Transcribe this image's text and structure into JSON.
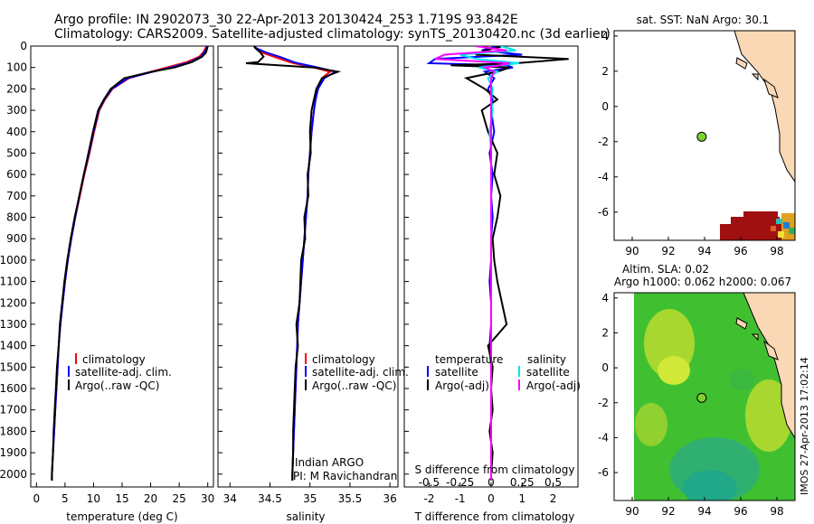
{
  "header": {
    "line1": "Argo profile: IN 2902073_30 22-Apr-2013 20130424_253 1.719S 93.842E",
    "line2": "Climatology: CARS2009. Satellite-adjusted climatology: synTS_20130420.nc (3d earlier)"
  },
  "credit": "IMOS 27-Apr-2013 17:02:14",
  "profile_info": {
    "program": "Indian ARGO",
    "pi": "PI: M Ravichandran"
  },
  "colors": {
    "climatology": "#ff0000",
    "satellite": "#0000ff",
    "argo": "#000000",
    "sat_diff_s": "#00e5ee",
    "argo_diff_s": "#ff00ff"
  },
  "chart_data": [
    {
      "type": "line",
      "name": "temperature-profile",
      "xlabel": "temperature (deg C)",
      "ylabel": "",
      "xlim": [
        -1,
        31
      ],
      "ylim": [
        2060,
        0
      ],
      "xticks": [
        0,
        5,
        10,
        15,
        20,
        25,
        30
      ],
      "yticks": [
        0,
        100,
        200,
        300,
        400,
        500,
        600,
        700,
        800,
        900,
        1000,
        1100,
        1200,
        1300,
        1400,
        1500,
        1600,
        1700,
        1800,
        1900,
        2000
      ],
      "depth": [
        0,
        10,
        30,
        50,
        75,
        100,
        120,
        150,
        200,
        250,
        300,
        400,
        500,
        600,
        700,
        800,
        900,
        1000,
        1100,
        1200,
        1300,
        1400,
        1500,
        1600,
        1700,
        1800,
        1900,
        2000,
        2030
      ],
      "series": [
        {
          "name": "climatology",
          "values": [
            29.7,
            29.6,
            29.2,
            28.5,
            26.3,
            22.8,
            20.1,
            16.2,
            13.3,
            12.0,
            11.0,
            10.1,
            9.3,
            8.4,
            7.6,
            6.8,
            6.1,
            5.5,
            5.0,
            4.6,
            4.2,
            3.9,
            3.7,
            3.5,
            3.3,
            3.1,
            2.9,
            2.7,
            2.7
          ]
        },
        {
          "name": "satellite-adj. clim.",
          "values": [
            29.9,
            29.8,
            29.4,
            28.8,
            26.9,
            23.5,
            20.4,
            16.0,
            13.2,
            11.9,
            10.9,
            10.0,
            9.2,
            8.3,
            7.5,
            6.8,
            6.1,
            5.5,
            5.0,
            4.6,
            4.2,
            3.9,
            3.7,
            3.5,
            3.3,
            3.1,
            2.9,
            2.7,
            2.7
          ]
        },
        {
          "name": "Argo(..raw -QC)",
          "values": [
            30.0,
            29.9,
            29.7,
            29.0,
            27.2,
            24.2,
            20.2,
            15.4,
            13.0,
            11.8,
            10.8,
            9.9,
            9.1,
            8.3,
            7.5,
            6.7,
            6.0,
            5.4,
            4.9,
            4.5,
            4.1,
            3.9,
            3.6,
            3.4,
            3.2,
            3.0,
            2.9,
            2.7,
            2.7
          ]
        }
      ],
      "legend": [
        "climatology",
        "satellite-adj. clim.",
        "Argo(..raw -QC)"
      ]
    },
    {
      "type": "line",
      "name": "salinity-profile",
      "xlabel": "salinity",
      "xlim": [
        33.85,
        36.1
      ],
      "ylim": [
        2060,
        0
      ],
      "xticks": [
        34,
        34.5,
        35,
        35.5,
        36
      ],
      "depth": [
        0,
        10,
        30,
        50,
        75,
        80,
        100,
        120,
        150,
        200,
        250,
        300,
        400,
        500,
        600,
        700,
        800,
        900,
        1000,
        1100,
        1200,
        1300,
        1400,
        1500,
        1600,
        1700,
        1800,
        1900,
        2000,
        2030
      ],
      "series": [
        {
          "name": "climatology",
          "values": [
            34.3,
            34.32,
            34.4,
            34.55,
            34.75,
            34.8,
            35.05,
            35.25,
            35.15,
            35.1,
            35.07,
            35.05,
            35.02,
            35.0,
            34.98,
            34.97,
            34.95,
            34.93,
            34.91,
            34.89,
            34.87,
            34.85,
            34.84,
            34.83,
            34.82,
            34.81,
            34.8,
            34.79,
            34.78,
            34.78
          ]
        },
        {
          "name": "satellite-adj. clim.",
          "values": [
            34.3,
            34.33,
            34.45,
            34.62,
            34.8,
            34.85,
            35.1,
            35.32,
            35.18,
            35.1,
            35.07,
            35.05,
            35.02,
            35.0,
            34.98,
            34.97,
            34.95,
            34.93,
            34.91,
            34.89,
            34.87,
            34.85,
            34.84,
            34.83,
            34.82,
            34.81,
            34.8,
            34.79,
            34.78,
            34.78
          ]
        },
        {
          "name": "Argo(..raw -QC)",
          "values": [
            34.3,
            34.32,
            34.38,
            34.42,
            34.35,
            34.2,
            35.05,
            35.35,
            35.15,
            35.08,
            35.05,
            35.02,
            35.0,
            35.01,
            34.97,
            34.98,
            34.93,
            34.94,
            34.89,
            34.88,
            34.87,
            34.83,
            34.85,
            34.82,
            34.81,
            34.8,
            34.79,
            34.79,
            34.78,
            34.78
          ]
        }
      ],
      "legend": [
        "climatology",
        "satellite-adj. clim.",
        "Argo(..raw -QC)"
      ]
    },
    {
      "type": "line",
      "name": "difference-profile",
      "xlabel": "T difference from climatology",
      "xlabel_top": "S difference from climatology",
      "xlim": [
        -2.8,
        2.8
      ],
      "ylim": [
        2060,
        0
      ],
      "xticks": [
        -2,
        -1,
        0,
        1,
        2
      ],
      "xticks_top": [
        "-0.5",
        "-0.25",
        "0",
        "0.25",
        "0.5"
      ],
      "xticks_top_pos": [
        -2,
        -1,
        0,
        1,
        2
      ],
      "depth": [
        0,
        20,
        40,
        60,
        80,
        90,
        100,
        120,
        150,
        200,
        250,
        300,
        400,
        500,
        600,
        700,
        800,
        900,
        1000,
        1100,
        1200,
        1300,
        1400,
        1500,
        1600,
        1700,
        1800,
        1900,
        2000,
        2030
      ],
      "series": [
        {
          "name": "temperature satellite",
          "values": [
            0.2,
            -0.3,
            1.0,
            -1.8,
            -2.0,
            0.5,
            0.7,
            -0.2,
            0.1,
            -0.1,
            0.05,
            0,
            0.1,
            -0.05,
            0.05,
            0,
            0.05,
            0,
            0,
            -0.05,
            0,
            0,
            -0.05,
            0,
            0,
            0,
            0,
            0,
            0,
            0
          ]
        },
        {
          "name": "temperature Argo(-adj)",
          "values": [
            0.4,
            -0.2,
            -0.5,
            2.5,
            0.8,
            -1.3,
            0.6,
            0.2,
            -0.8,
            -0.2,
            0.2,
            -0.3,
            -0.1,
            0.2,
            0.1,
            0.3,
            0.2,
            0.05,
            0.1,
            0.2,
            0.35,
            0.5,
            -0.1,
            0.05,
            0,
            0.05,
            -0.05,
            0.05,
            0,
            0
          ]
        },
        {
          "name": "salinity satellite",
          "values": [
            0.3,
            0.8,
            -1.0,
            -0.5,
            0.9,
            0.3,
            -0.4,
            0.2,
            -0.1,
            0.05,
            0,
            0.05,
            -0.05,
            0,
            0,
            0,
            0,
            0,
            0,
            0,
            0,
            0,
            0,
            0,
            0,
            0,
            0,
            0,
            0,
            0
          ]
        },
        {
          "name": "salinity Argo(-adj)",
          "values": [
            -0.5,
            0.5,
            -1.5,
            -1.8,
            0.6,
            0.3,
            -0.2,
            0.1,
            0,
            0,
            0,
            0,
            0,
            0,
            0,
            0,
            0,
            0,
            0,
            0,
            0,
            0,
            0,
            0,
            0,
            0,
            0,
            0,
            0,
            0
          ]
        }
      ],
      "legend": {
        "temperature_title": "temperature",
        "salinity_title": "salinity",
        "satellite": "satellite",
        "argo": "Argo(-adj)"
      }
    },
    {
      "type": "map",
      "name": "sst-map",
      "title": "sat. SST: NaN Argo: 30.1",
      "xlim": [
        89,
        99
      ],
      "ylim": [
        -7.6,
        4.3
      ],
      "xticks": [
        90,
        92,
        94,
        96,
        98
      ],
      "yticks": [
        4,
        2,
        0,
        -2,
        -4,
        -6
      ],
      "argo_position": {
        "lon": 93.842,
        "lat": -1.719
      }
    },
    {
      "type": "map",
      "name": "sla-map",
      "title_line1": "Altim. SLA: 0.02",
      "title_line2": "Argo h1000: 0.062 h2000: 0.067",
      "xlim": [
        89,
        99
      ],
      "ylim": [
        -7.6,
        4.3
      ],
      "xticks": [
        90,
        92,
        94,
        96,
        98
      ],
      "yticks": [
        4,
        2,
        0,
        -2,
        -4,
        -6
      ],
      "argo_position": {
        "lon": 93.842,
        "lat": -1.719
      }
    }
  ]
}
